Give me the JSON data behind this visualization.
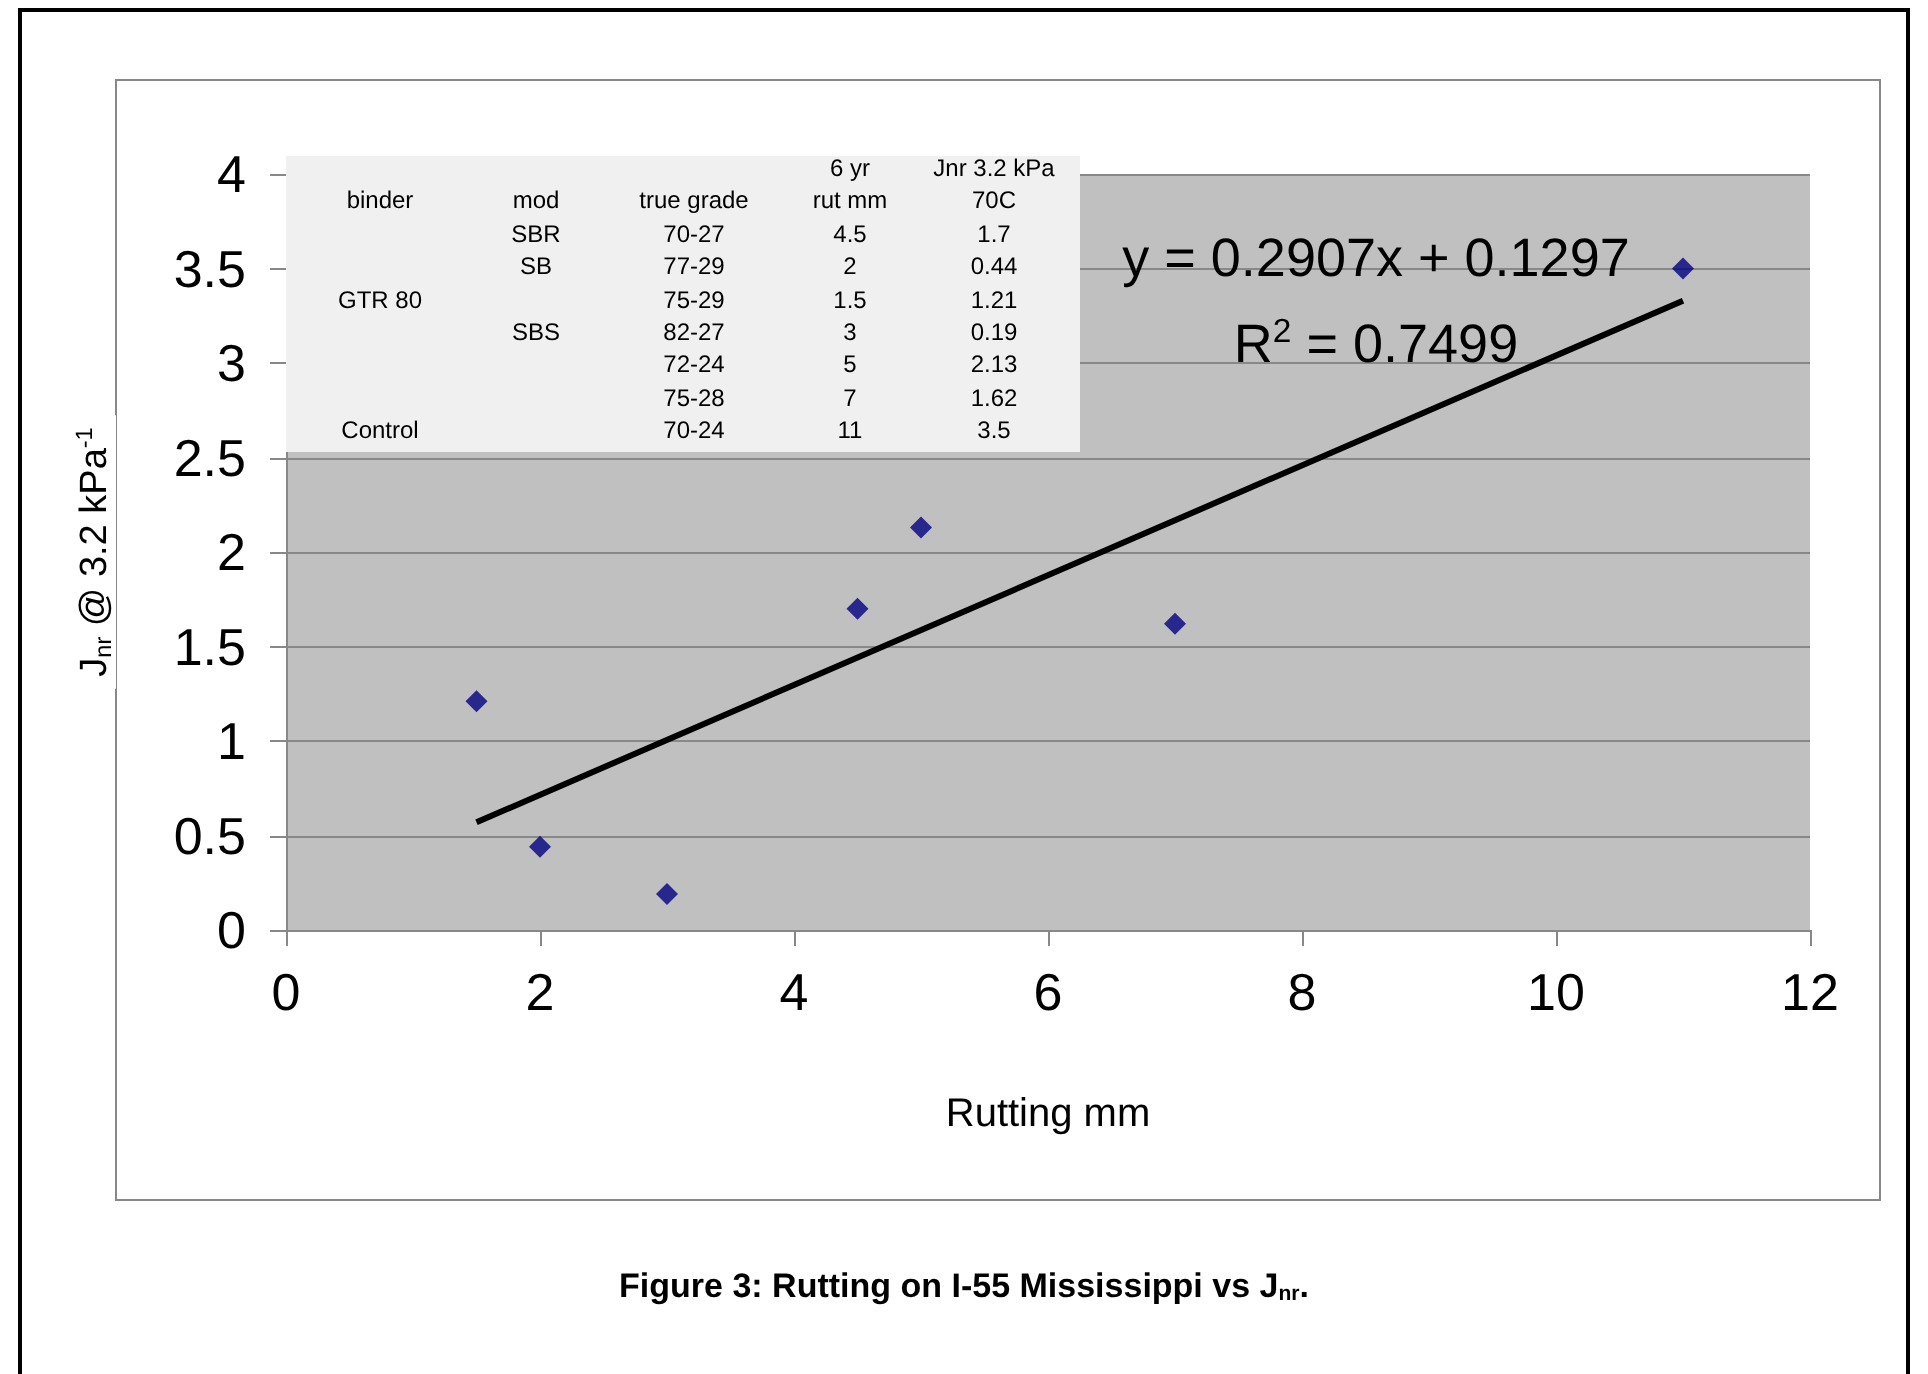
{
  "chart_data": {
    "type": "scatter",
    "xlabel": "Rutting mm",
    "ylabel": "J$_{nr}$ @ 3.2 kPa$^{-1}$",
    "xlim": [
      0,
      12
    ],
    "xticks": [
      0,
      2,
      4,
      6,
      8,
      10,
      12
    ],
    "ylim": [
      0,
      4
    ],
    "yticks": [
      0,
      0.5,
      1,
      1.5,
      2,
      2.5,
      3,
      3.5,
      4
    ],
    "grid": "y",
    "marker": "diamond",
    "series": [
      {
        "color": "#000080",
        "x": [
          4.5,
          2,
          1.5,
          3,
          5,
          7,
          11
        ],
        "values": [
          1.7,
          0.44,
          1.21,
          0.19,
          2.13,
          1.62,
          3.5
        ]
      },
      {
        "type": "line",
        "marker": "none",
        "color": "#000000",
        "x": [
          1.5,
          11
        ],
        "values": [
          0.57,
          3.33
        ]
      }
    ],
    "annotations": [
      "y = 0.2907x + 0.1297",
      "R$^{2}$ = 0.7499",
      "Figure 3: Rutting on I-55 Mississippi vs J$_{nr}$.",
      "\t\t\t6 yr\tJnr 3.2 kPa",
      "binder\tmod\ttrue grade\trut mm\t70C",
      "\tSBR\t70-27\t4.5\t1.7",
      "\tSB\t77-29\t2\t0.44",
      "GTR 80\t\t75-29\t1.5\t1.21",
      "\tSBS\t82-27\t3\t0.19",
      "\t\t72-24\t5\t2.13",
      "\t\t75-28\t7\t1.62",
      "Control\t\t70-24\t11\t3.5"
    ]
  }
}
